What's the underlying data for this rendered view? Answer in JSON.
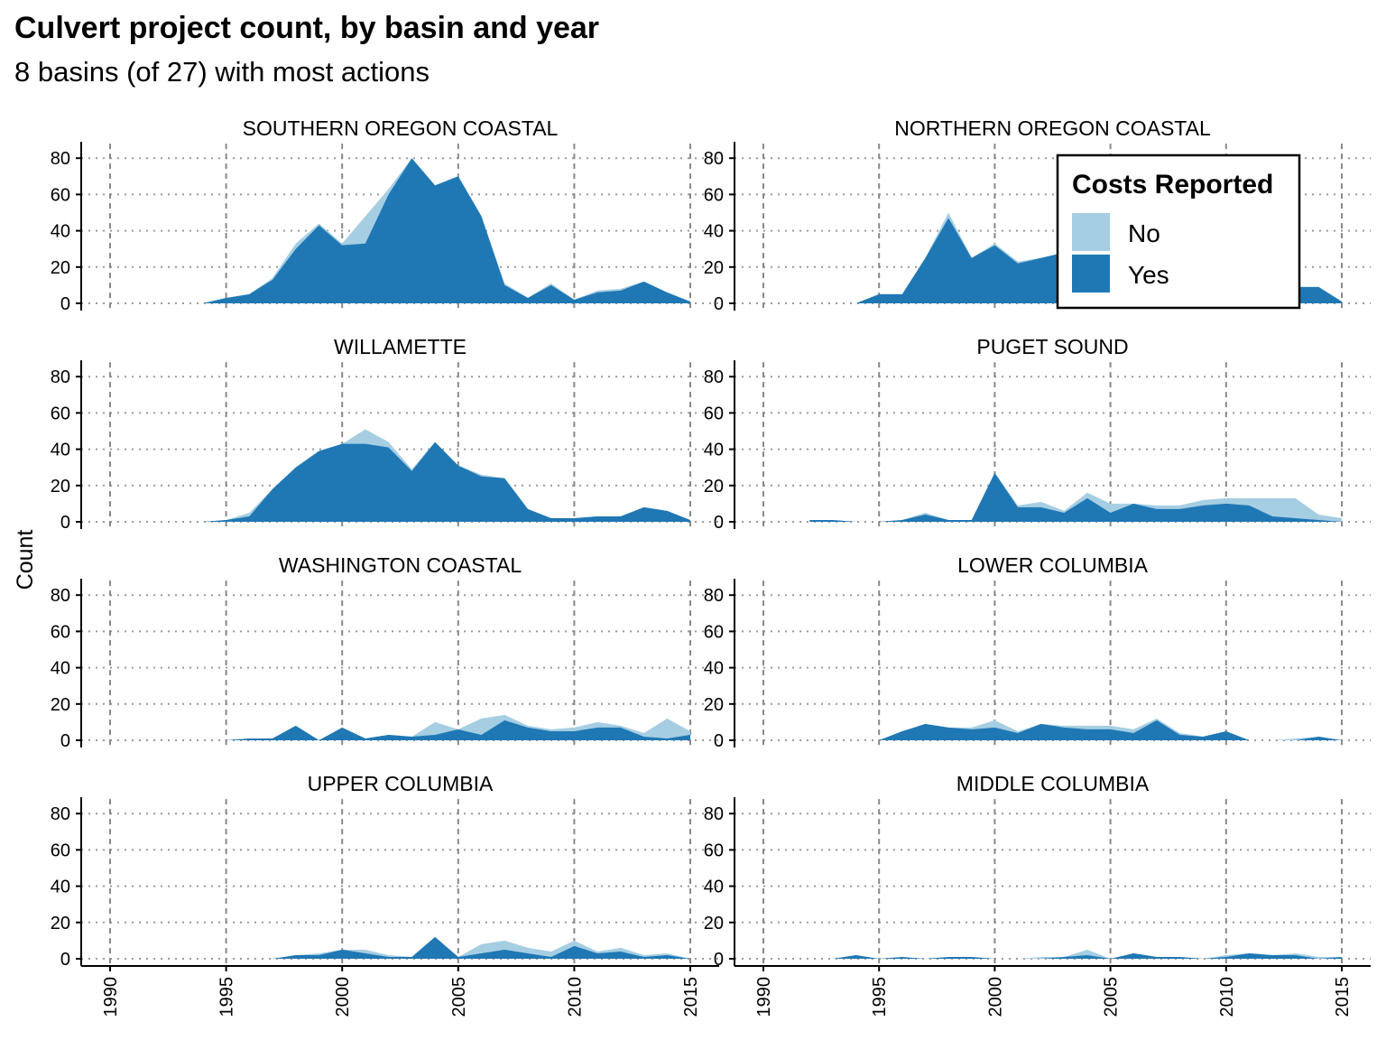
{
  "chart_data": {
    "type": "area",
    "stacked": true,
    "title": "Culvert project count, by basin and year",
    "subtitle": "8 basins (of 27) with most actions",
    "ylabel": "Count",
    "xlabel": "",
    "xlim": [
      1989,
      2015
    ],
    "ylim": [
      0,
      84
    ],
    "x_ticks": [
      1990,
      1995,
      2000,
      2005,
      2010,
      2015
    ],
    "y_ticks": [
      0,
      20,
      40,
      60,
      80
    ],
    "grid": true,
    "legend": {
      "title": "Costs Reported",
      "placement": "top-right",
      "entries": [
        {
          "label": "No",
          "color": "#a6cee3"
        },
        {
          "label": "Yes",
          "color": "#1f78b4"
        }
      ]
    },
    "series_colors": {
      "No": "#a6cee3",
      "Yes": "#1f78b4"
    },
    "panels": [
      {
        "name": "SOUTHERN OREGON COASTAL",
        "x": [
          1994,
          1995,
          1996,
          1997,
          1998,
          1999,
          2000,
          2001,
          2002,
          2003,
          2004,
          2005,
          2006,
          2007,
          2008,
          2009,
          2010,
          2011,
          2012,
          2013,
          2014,
          2015
        ],
        "yes": [
          0,
          3,
          5,
          13,
          30,
          43,
          32,
          33,
          60,
          80,
          65,
          70,
          48,
          10,
          3,
          10,
          2,
          6,
          7,
          12,
          6,
          1
        ],
        "no": [
          0,
          0,
          0,
          1,
          3,
          1,
          1,
          15,
          3,
          0,
          0,
          0,
          0,
          1,
          0,
          1,
          0,
          1,
          1,
          0,
          0,
          0
        ]
      },
      {
        "name": "NORTHERN OREGON COASTAL",
        "x": [
          1994,
          1995,
          1996,
          1997,
          1998,
          1999,
          2000,
          2001,
          2002,
          2003,
          2004,
          2005,
          2006,
          2007,
          2008,
          2009,
          2010,
          2011,
          2012,
          2013,
          2014,
          2015
        ],
        "yes": [
          0,
          5,
          5,
          25,
          47,
          25,
          32,
          22,
          25,
          28,
          20,
          18,
          15,
          14,
          12,
          10,
          10,
          10,
          9,
          9,
          9,
          1
        ],
        "no": [
          0,
          0,
          0,
          0,
          3,
          0,
          1,
          1,
          0,
          0,
          0,
          0,
          0,
          0,
          0,
          0,
          0,
          0,
          0,
          0,
          0,
          0
        ]
      },
      {
        "name": "WILLAMETTE",
        "x": [
          1994,
          1995,
          1996,
          1997,
          1998,
          1999,
          2000,
          2001,
          2002,
          2003,
          2004,
          2005,
          2006,
          2007,
          2008,
          2009,
          2010,
          2011,
          2012,
          2013,
          2014,
          2015
        ],
        "yes": [
          0,
          1,
          3,
          18,
          30,
          39,
          43,
          43,
          41,
          28,
          44,
          31,
          25,
          24,
          7,
          2,
          2,
          3,
          3,
          8,
          6,
          1
        ],
        "no": [
          0,
          0,
          2,
          0,
          0,
          0,
          0,
          8,
          3,
          1,
          0,
          0,
          1,
          0,
          0,
          0,
          0,
          0,
          0,
          0,
          0,
          0
        ]
      },
      {
        "name": "PUGET SOUND",
        "x": [
          1992,
          1993,
          1994,
          1995,
          1996,
          1997,
          1998,
          1999,
          2000,
          2001,
          2002,
          2003,
          2004,
          2005,
          2006,
          2007,
          2008,
          2009,
          2010,
          2011,
          2012,
          2013,
          2014,
          2015
        ],
        "yes": [
          1,
          1,
          0,
          0,
          1,
          4,
          1,
          1,
          27,
          8,
          8,
          5,
          13,
          5,
          10,
          7,
          7,
          9,
          10,
          9,
          3,
          2,
          1,
          0
        ],
        "no": [
          0,
          0,
          0,
          0,
          0,
          1,
          0,
          0,
          0,
          1,
          3,
          1,
          3,
          5,
          0,
          2,
          2,
          3,
          3,
          4,
          10,
          11,
          3,
          2
        ]
      },
      {
        "name": "WASHINGTON COASTAL",
        "x": [
          1995,
          1996,
          1997,
          1998,
          1999,
          2000,
          2001,
          2002,
          2003,
          2004,
          2005,
          2006,
          2007,
          2008,
          2009,
          2010,
          2011,
          2012,
          2013,
          2014,
          2015
        ],
        "yes": [
          0,
          1,
          1,
          8,
          0,
          7,
          1,
          3,
          2,
          3,
          6,
          3,
          11,
          7,
          5,
          5,
          7,
          7,
          2,
          1,
          3
        ],
        "no": [
          0,
          0,
          0,
          0,
          0,
          0,
          0,
          0,
          0,
          7,
          0,
          9,
          3,
          1,
          1,
          2,
          3,
          1,
          2,
          11,
          2
        ]
      },
      {
        "name": "LOWER COLUMBIA",
        "x": [
          1994,
          1995,
          1996,
          1997,
          1998,
          1999,
          2000,
          2001,
          2002,
          2003,
          2004,
          2005,
          2006,
          2007,
          2008,
          2009,
          2010,
          2011,
          2012,
          2013,
          2014,
          2015
        ],
        "yes": [
          0,
          0,
          5,
          9,
          7,
          6,
          7,
          4,
          9,
          7,
          6,
          6,
          4,
          11,
          3,
          2,
          5,
          0,
          0,
          0,
          2,
          0
        ],
        "no": [
          0,
          0,
          0,
          0,
          0,
          1,
          4,
          1,
          0,
          1,
          2,
          2,
          2,
          1,
          1,
          0,
          0,
          0,
          0,
          1,
          0,
          0
        ]
      },
      {
        "name": "UPPER COLUMBIA",
        "x": [
          1995,
          1996,
          1997,
          1998,
          1999,
          2000,
          2001,
          2002,
          2003,
          2004,
          2005,
          2006,
          2007,
          2008,
          2009,
          2010,
          2011,
          2012,
          2013,
          2014,
          2015
        ],
        "yes": [
          0,
          0,
          0,
          2,
          2,
          5,
          3,
          1,
          1,
          12,
          1,
          3,
          5,
          3,
          1,
          7,
          3,
          4,
          1,
          2,
          0
        ],
        "no": [
          0,
          0,
          0,
          0,
          1,
          0,
          2,
          1,
          0,
          0,
          0,
          5,
          5,
          3,
          3,
          3,
          1,
          2,
          1,
          1,
          0
        ]
      },
      {
        "name": "MIDDLE COLUMBIA",
        "x": [
          1993,
          1994,
          1995,
          1996,
          1997,
          1998,
          1999,
          2000,
          2001,
          2002,
          2003,
          2004,
          2005,
          2006,
          2007,
          2008,
          2009,
          2010,
          2011,
          2012,
          2013,
          2014,
          2015
        ],
        "yes": [
          0,
          2,
          0,
          1,
          0,
          1,
          1,
          0,
          0,
          0,
          1,
          2,
          0,
          3,
          1,
          1,
          0,
          1,
          3,
          2,
          2,
          0,
          1
        ],
        "no": [
          0,
          0,
          0,
          0,
          0,
          0,
          0,
          0,
          0,
          1,
          0,
          3,
          0,
          0,
          0,
          0,
          0,
          1,
          0,
          0,
          1,
          1,
          0
        ]
      }
    ]
  }
}
